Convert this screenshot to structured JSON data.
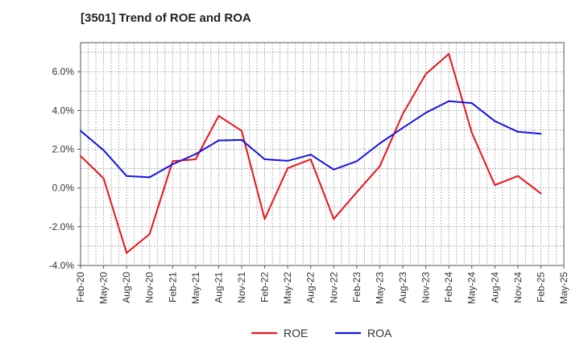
{
  "chart_data": {
    "type": "line",
    "title": "[3501]  Trend of ROE and ROA",
    "xlabel": "",
    "ylabel": "",
    "categories": [
      "Feb-20",
      "May-20",
      "Aug-20",
      "Nov-20",
      "Feb-21",
      "May-21",
      "Aug-21",
      "Nov-21",
      "Feb-22",
      "May-22",
      "Aug-22",
      "Nov-22",
      "Feb-23",
      "May-23",
      "Aug-23",
      "Nov-23",
      "Feb-24",
      "May-24",
      "Aug-24",
      "Nov-24",
      "Feb-25",
      "May-25"
    ],
    "ylim": [
      -4.0,
      7.5
    ],
    "yticks": [
      -4.0,
      -2.0,
      0.0,
      2.0,
      4.0,
      6.0
    ],
    "ytick_labels": [
      "-4.0%",
      "-2.0%",
      "0.0%",
      "2.0%",
      "4.0%",
      "6.0%"
    ],
    "grid": true,
    "legend_position": "bottom-center",
    "series": [
      {
        "name": "ROE",
        "color": "#e8141b",
        "values": [
          1.65,
          0.5,
          -3.35,
          -2.38,
          1.38,
          1.48,
          3.72,
          2.95,
          -1.6,
          1.02,
          1.48,
          -1.6,
          -0.22,
          1.12,
          3.82,
          5.88,
          6.92,
          2.85,
          0.15,
          0.62,
          -0.28,
          null
        ]
      },
      {
        "name": "ROA",
        "color": "#1414e6",
        "values": [
          2.95,
          1.95,
          0.62,
          0.55,
          1.22,
          1.75,
          2.45,
          2.48,
          1.48,
          1.4,
          1.72,
          0.95,
          1.38,
          2.3,
          3.1,
          3.88,
          4.48,
          4.38,
          3.45,
          2.9,
          2.8,
          null
        ]
      }
    ]
  }
}
